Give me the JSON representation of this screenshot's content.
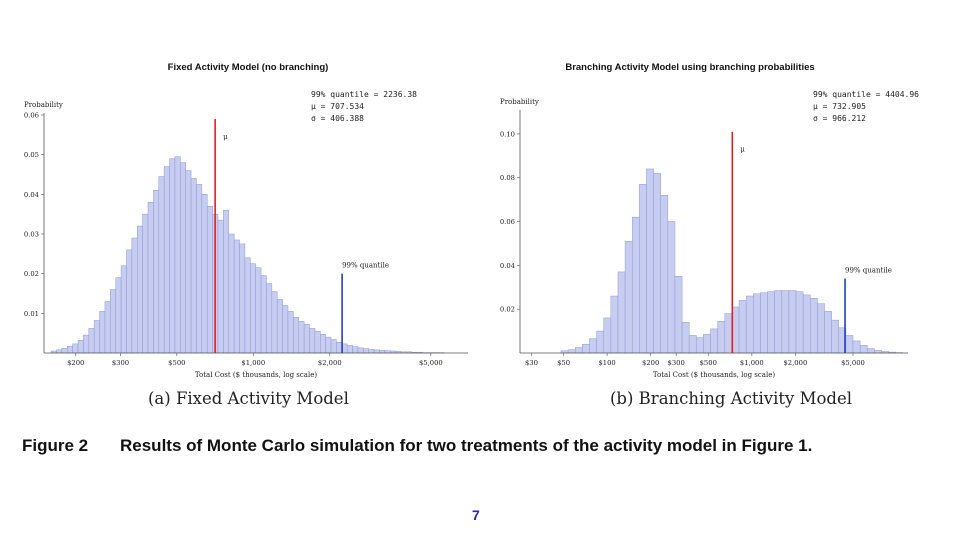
{
  "chart_data": [
    {
      "type": "bar",
      "title": "Fixed Activity Model (no branching)",
      "ylabel": "Probability",
      "xlabel": "Total Cost ($ thousands, log scale)",
      "x_scale": "log",
      "xlim": [
        150,
        7000
      ],
      "ylim": [
        0,
        0.06
      ],
      "x_ticks": [
        {
          "value": 200,
          "label": "$200"
        },
        {
          "value": 300,
          "label": "$300"
        },
        {
          "value": 500,
          "label": "$500"
        },
        {
          "value": 1000,
          "label": "$1,000"
        },
        {
          "value": 2000,
          "label": "$2,000"
        },
        {
          "value": 5000,
          "label": "$5,000"
        }
      ],
      "y_ticks": [
        {
          "value": 0.01,
          "label": "0.01"
        },
        {
          "value": 0.02,
          "label": "0.02"
        },
        {
          "value": 0.03,
          "label": "0.03"
        },
        {
          "value": 0.04,
          "label": "0.04"
        },
        {
          "value": 0.05,
          "label": "0.05"
        },
        {
          "value": 0.06,
          "label": "0.06"
        }
      ],
      "bins": {
        "start": 160,
        "ratio": 1.05,
        "values": [
          0.0005,
          0.0008,
          0.0012,
          0.0017,
          0.0023,
          0.0032,
          0.0045,
          0.0062,
          0.0082,
          0.0105,
          0.013,
          0.016,
          0.019,
          0.022,
          0.026,
          0.029,
          0.032,
          0.035,
          0.038,
          0.041,
          0.0445,
          0.047,
          0.049,
          0.0495,
          0.048,
          0.046,
          0.044,
          0.0425,
          0.04,
          0.037,
          0.035,
          0.0335,
          0.036,
          0.03,
          0.0285,
          0.0275,
          0.024,
          0.0225,
          0.0215,
          0.0195,
          0.0175,
          0.0155,
          0.0135,
          0.012,
          0.0105,
          0.009,
          0.008,
          0.0072,
          0.0062,
          0.0055,
          0.0047,
          0.004,
          0.0034,
          0.0027,
          0.0023,
          0.0019,
          0.0016,
          0.0013,
          0.0011,
          0.0009,
          0.0008,
          0.0007,
          0.0006,
          0.0005,
          0.0004,
          0.0003,
          0.0003,
          0.0002,
          0.0002,
          0.0001,
          0.0001,
          0.0001,
          0.0001
        ]
      },
      "bar_color": "#c7cdf0",
      "bar_edge_color": "#8f98d6",
      "mean": {
        "value": 707.534,
        "label": "μ",
        "ymax": 0.059,
        "color": "#e02020"
      },
      "quantile": {
        "value": 2236.38,
        "label": "99% quantile",
        "ymax": 0.02,
        "color": "#2040c0"
      },
      "stats_lines": [
        "99% quantile = 2236.38",
        "μ = 707.534",
        "σ = 406.388"
      ],
      "grid": false
    },
    {
      "type": "bar",
      "title": "Branching Activity Model using branching probabilities",
      "ylabel": "Probability",
      "xlabel": "Total Cost ($ thousands, log scale)",
      "x_scale": "log",
      "xlim": [
        25,
        12000
      ],
      "ylim": [
        0,
        0.11
      ],
      "x_ticks": [
        {
          "value": 30,
          "label": "$30"
        },
        {
          "value": 50,
          "label": "$50"
        },
        {
          "value": 100,
          "label": "$100"
        },
        {
          "value": 200,
          "label": "$200"
        },
        {
          "value": 300,
          "label": "$300"
        },
        {
          "value": 500,
          "label": "$500"
        },
        {
          "value": 1000,
          "label": "$1,000"
        },
        {
          "value": 2000,
          "label": "$2,000"
        },
        {
          "value": 5000,
          "label": "$5,000"
        }
      ],
      "y_ticks": [
        {
          "value": 0.02,
          "label": "0.02"
        },
        {
          "value": 0.04,
          "label": "0.04"
        },
        {
          "value": 0.06,
          "label": "0.06"
        },
        {
          "value": 0.08,
          "label": "0.08"
        },
        {
          "value": 0.1,
          "label": "0.10"
        }
      ],
      "bins": {
        "start": 48,
        "ratio": 1.12,
        "values": [
          0.001,
          0.0015,
          0.0025,
          0.004,
          0.0065,
          0.01,
          0.016,
          0.026,
          0.037,
          0.051,
          0.062,
          0.077,
          0.084,
          0.082,
          0.072,
          0.06,
          0.035,
          0.014,
          0.008,
          0.007,
          0.0085,
          0.011,
          0.0145,
          0.018,
          0.021,
          0.024,
          0.026,
          0.027,
          0.0275,
          0.028,
          0.0285,
          0.0285,
          0.0285,
          0.028,
          0.0265,
          0.025,
          0.0225,
          0.019,
          0.015,
          0.0115,
          0.008,
          0.0055,
          0.0035,
          0.002,
          0.0012,
          0.0007,
          0.0004,
          0.0002
        ]
      },
      "bar_color": "#c7cdf0",
      "bar_edge_color": "#8f98d6",
      "mean": {
        "value": 732.905,
        "label": "μ",
        "ymax": 0.101,
        "color": "#e02020"
      },
      "quantile": {
        "value": 4404.96,
        "label": "99% quantile",
        "ymax": 0.034,
        "color": "#2040c0"
      },
      "stats_lines": [
        "99% quantile = 4404.96",
        "μ = 732.905",
        "σ = 966.212"
      ],
      "grid": false
    }
  ],
  "captions": {
    "panel_a": "(a) Fixed Activity Model",
    "panel_b": "(b) Branching Activity Model",
    "figure_label": "Figure 2",
    "figure_text": "Results of Monte Carlo simulation for two treatments of the activity model in Figure 1."
  },
  "page_number": "7"
}
